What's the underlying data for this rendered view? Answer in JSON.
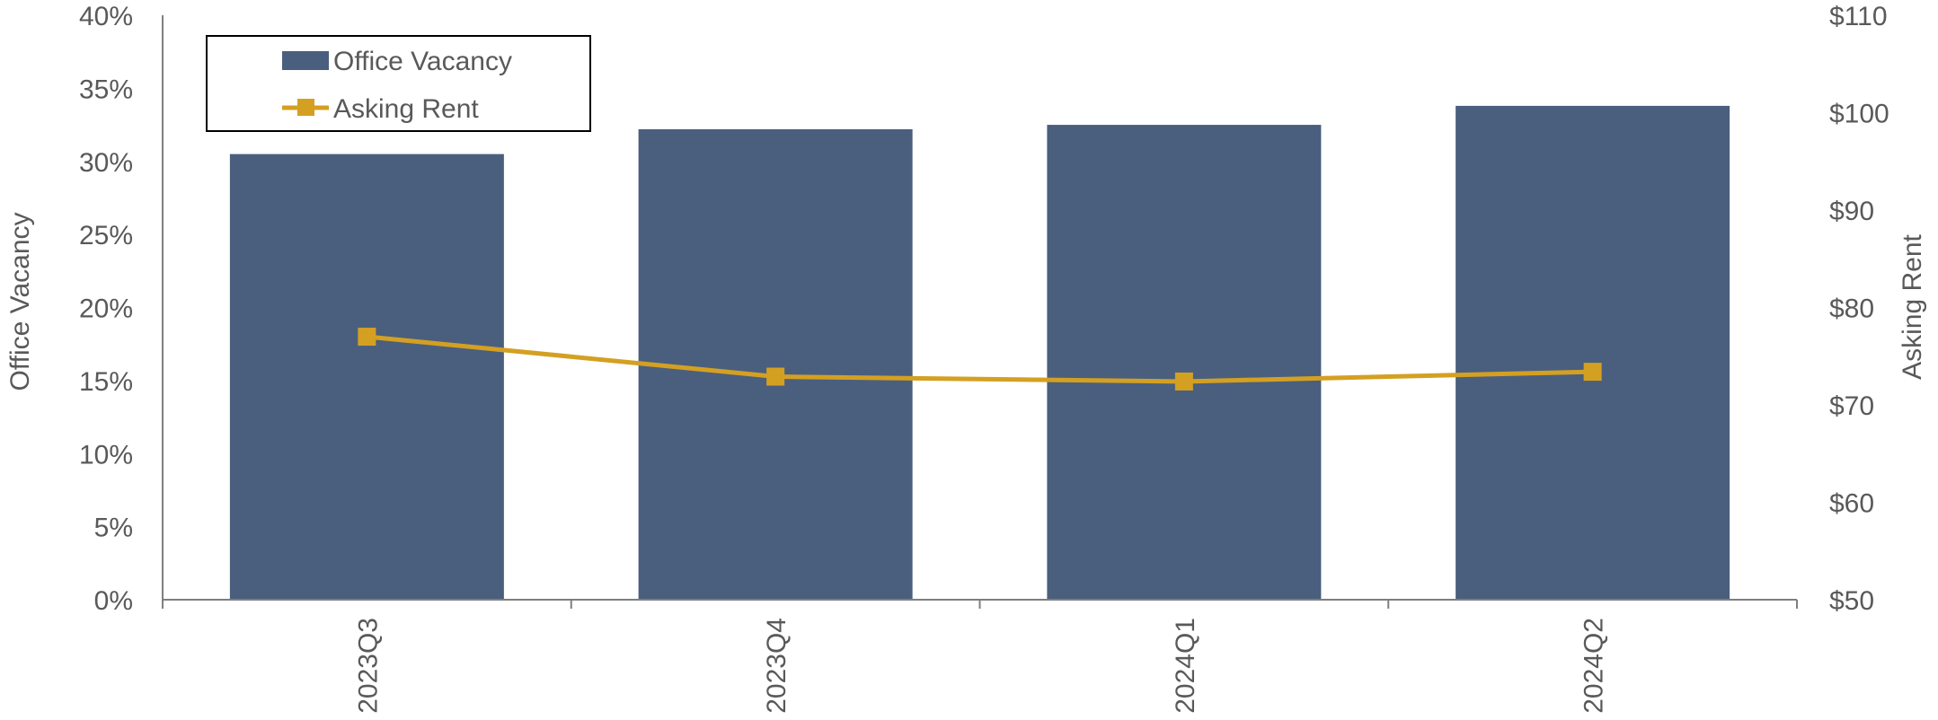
{
  "chart_data": {
    "type": "bar",
    "categories": [
      "2023Q3",
      "2023Q4",
      "2024Q1",
      "2024Q2"
    ],
    "series": [
      {
        "name": "Office Vacancy",
        "type": "bar",
        "axis": "left",
        "values": [
          30.5,
          32.2,
          32.5,
          33.8
        ],
        "color": "#4a5f7e"
      },
      {
        "name": "Asking Rent",
        "type": "line",
        "axis": "right",
        "marker": "square",
        "values": [
          77.0,
          72.9,
          72.4,
          73.4
        ],
        "color": "#d4a022"
      }
    ],
    "yleft": {
      "label": "Office Vacancy",
      "ylim": [
        0,
        40
      ],
      "ticks": [
        0,
        5,
        10,
        15,
        20,
        25,
        30,
        35,
        40
      ],
      "tick_labels": [
        "0%",
        "5%",
        "10%",
        "15%",
        "20%",
        "25%",
        "30%",
        "35%",
        "40%"
      ]
    },
    "yright": {
      "label": "Asking Rent",
      "ylim": [
        50,
        110
      ],
      "ticks": [
        50,
        60,
        70,
        80,
        90,
        100,
        110
      ],
      "tick_labels": [
        "$50",
        "$60",
        "$70",
        "$80",
        "$90",
        "$100",
        "$110"
      ]
    },
    "xlabel": "",
    "title": "",
    "grid": false,
    "legend": {
      "placement": "top-left",
      "entries": [
        "Office Vacancy",
        "Asking Rent"
      ]
    }
  }
}
